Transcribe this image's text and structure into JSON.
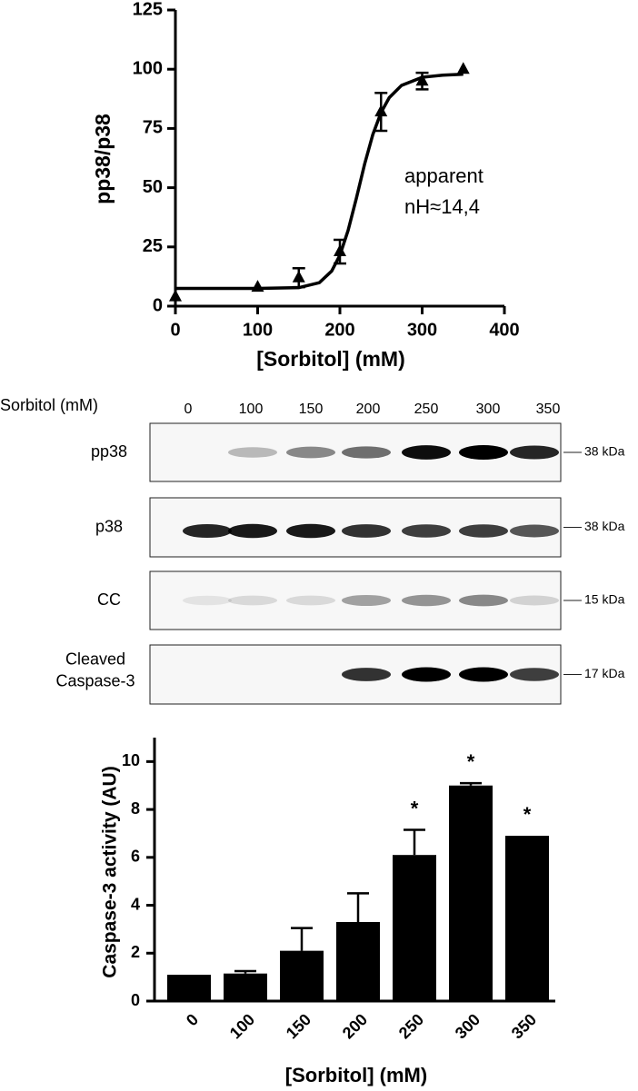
{
  "chart_data": [
    {
      "type": "scatter",
      "x_label": "[Sorbitol] (mM)",
      "y_label": "pp38/p38",
      "annotation": [
        "apparent",
        "nH≈14,4"
      ],
      "x": [
        0,
        100,
        150,
        200,
        250,
        300,
        350
      ],
      "values": [
        4,
        8,
        12,
        23,
        82,
        95,
        100
      ],
      "errors": [
        null,
        null,
        4,
        5,
        8,
        3.5,
        null
      ],
      "color": "#000000",
      "fit": {
        "x": [
          0,
          50,
          100,
          150,
          175,
          190,
          200,
          210,
          220,
          230,
          240,
          250,
          260,
          275,
          300,
          325,
          350
        ],
        "values": [
          7.5,
          7.5,
          7.5,
          7.8,
          9.9,
          14.8,
          21.5,
          32,
          45.5,
          59.9,
          72.4,
          81.7,
          88,
          93.2,
          96.6,
          97.5,
          97.9
        ]
      },
      "xlim": [
        0,
        400
      ],
      "xticks": [
        0,
        100,
        200,
        300,
        400
      ],
      "ylim": [
        0,
        125
      ],
      "yticks": [
        0,
        25,
        50,
        75,
        100,
        125
      ]
    },
    {
      "type": "bar",
      "x_label": "[Sorbitol] (mM)",
      "y_label": "Caspase-3 activity (AU)",
      "categories": [
        "0",
        "100",
        "150",
        "200",
        "250",
        "300",
        "350"
      ],
      "values": [
        1.1,
        1.15,
        2.1,
        3.3,
        6.1,
        9.0,
        6.9
      ],
      "errors": [
        null,
        0.1,
        0.95,
        1.2,
        1.05,
        0.1,
        null
      ],
      "value_annotations": [
        null,
        null,
        null,
        null,
        "*",
        "*",
        "*"
      ],
      "color": "#000000",
      "ylim": [
        0,
        11
      ],
      "yticks": [
        0,
        2,
        4,
        6,
        8,
        10
      ]
    }
  ],
  "blot": {
    "title": "Sorbitol (mM)",
    "lanes": [
      "0",
      "100",
      "150",
      "200",
      "250",
      "300",
      "350"
    ],
    "rows": [
      {
        "label": [
          "pp38"
        ],
        "size": "38 kDa"
      },
      {
        "label": [
          "p38"
        ],
        "size": "38 kDa"
      },
      {
        "label": [
          "CC"
        ],
        "size": "15 kDa"
      },
      {
        "label": [
          "Cleaved",
          "Caspase-3"
        ],
        "size": "17 kDa"
      }
    ]
  }
}
